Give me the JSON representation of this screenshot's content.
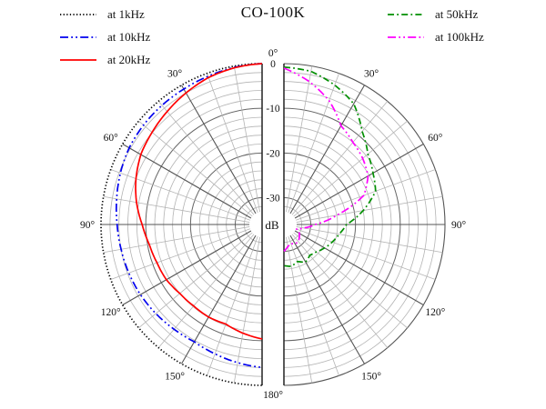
{
  "title": "CO-100K",
  "legend": {
    "left": [
      {
        "label": "at 1kHz",
        "color": "#000000",
        "dash": "dotted"
      },
      {
        "label": "at 10kHz",
        "color": "#0000ee",
        "dash": "dashdotdot"
      },
      {
        "label": "at 20kHz",
        "color": "#ff0000",
        "dash": "solid"
      }
    ],
    "right": [
      {
        "label": "at 50kHz",
        "color": "#008f00",
        "dash": "dashdot"
      },
      {
        "label": "at 100kHz",
        "color": "#ff00ff",
        "dash": "dashdotdot"
      }
    ]
  },
  "chart_data": {
    "type": "line",
    "subtype": "polar-half-pair-directivity",
    "title": "CO-100K",
    "radial_axis": {
      "label": "dB",
      "tick_labels": [
        "0",
        "-10",
        "-20",
        "-30"
      ],
      "ticks_db": [
        0,
        -10,
        -20,
        -30
      ],
      "outer_db": 0,
      "center_db": -36,
      "ring_step_db": 2
    },
    "angle_ticks_deg": [
      0,
      30,
      60,
      90,
      120,
      150,
      180
    ],
    "angle_minor_step_deg": 10,
    "angles_deg": [
      0,
      10,
      20,
      30,
      40,
      50,
      60,
      70,
      80,
      90,
      100,
      110,
      120,
      130,
      140,
      150,
      160,
      170,
      180
    ],
    "series": [
      {
        "name": "at 1kHz",
        "side": "left",
        "color": "#000000",
        "dash": "dotted",
        "values_db": [
          0,
          0,
          0,
          0,
          0,
          0,
          0,
          0,
          0,
          0,
          0,
          0,
          0,
          0,
          0,
          0,
          0,
          0,
          0
        ]
      },
      {
        "name": "at 10kHz",
        "side": "left",
        "color": "#0000ee",
        "dash": "dashdotdot",
        "values_db": [
          0,
          -0.3,
          -0.7,
          -1.0,
          -1.2,
          -1.4,
          -1.7,
          -2.3,
          -3.0,
          -3.6,
          -4.0,
          -4.3,
          -4.6,
          -5.0,
          -5.4,
          -5.7,
          -5.2,
          -4.6,
          -4.0
        ]
      },
      {
        "name": "at 20kHz",
        "side": "left",
        "color": "#ff0000",
        "dash": "solid",
        "values_db": [
          0,
          -0.4,
          -1.0,
          -2.0,
          -3.0,
          -3.9,
          -4.7,
          -6.0,
          -7.5,
          -9.2,
          -10.4,
          -11.0,
          -11.3,
          -12.0,
          -12.2,
          -12.1,
          -12.3,
          -11.3,
          -10.4
        ]
      },
      {
        "name": "at 50kHz",
        "side": "right",
        "color": "#008f00",
        "dash": "dashdot",
        "values_db": [
          -0.8,
          -1.2,
          -2.8,
          -4.8,
          -8.8,
          -11.5,
          -13.0,
          -14.2,
          -18.0,
          -22.0,
          -23.5,
          -24.5,
          -25.5,
          -26.5,
          -27.0,
          -26.3,
          -27.2,
          -26.5,
          -26.8
        ]
      },
      {
        "name": "at 100kHz",
        "side": "right",
        "color": "#ff00ff",
        "dash": "dashdotdot",
        "values_db": [
          -1.0,
          -3.5,
          -6.5,
          -10.5,
          -12.0,
          -13.0,
          -14.3,
          -17.0,
          -24.0,
          -29.0,
          -31.5,
          -33.0,
          -32.0,
          -31.5,
          -31.0,
          -31.0,
          -31.5,
          -31.0,
          -30.0
        ]
      }
    ],
    "layout_hints": {
      "grid": "on",
      "legend_position": "top-left and top-right",
      "left_half_series": [
        "at 1kHz",
        "at 10kHz",
        "at 20kHz"
      ],
      "right_half_series": [
        "at 50kHz",
        "at 100kHz"
      ]
    },
    "colors": {
      "minor_grid": "#b4b4b4",
      "major_grid": "#666666",
      "axis_edge": "#222222"
    }
  }
}
